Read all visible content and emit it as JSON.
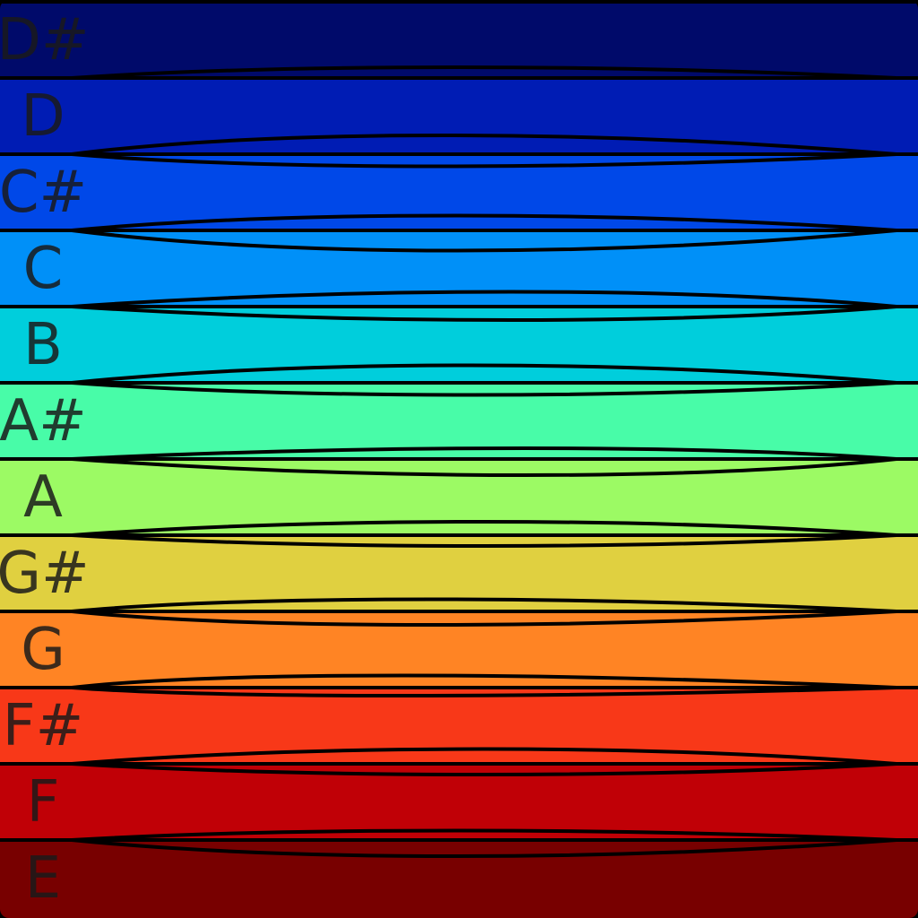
{
  "keys": [
    {
      "note": "D#",
      "color": "#000a6a",
      "lens_color": "#00128a"
    },
    {
      "note": "D",
      "color": "#001cb4",
      "lens_color": "#0012a0"
    },
    {
      "note": "C#",
      "color": "#0048e8",
      "lens_color": "#0028f0"
    },
    {
      "note": "C",
      "color": "#0090f8",
      "lens_color": "#0078d8"
    },
    {
      "note": "B",
      "color": "#00cedc",
      "lens_color": "#00c8a0"
    },
    {
      "note": "A#",
      "color": "#48fca8",
      "lens_color": "#28f458"
    },
    {
      "note": "A",
      "color": "#9cfa64",
      "lens_color": "#88cc38"
    },
    {
      "note": "G#",
      "color": "#e0d040",
      "lens_color": "#e07020"
    },
    {
      "note": "G",
      "color": "#ff8424",
      "lens_color": "#fa1e14"
    },
    {
      "note": "F#",
      "color": "#f83818",
      "lens_color": "#b80404"
    },
    {
      "note": "F",
      "color": "#c00006",
      "lens_color": "#820000"
    },
    {
      "note": "E",
      "color": "#780000",
      "lens_color": "#780000"
    }
  ],
  "outline_color": "#000000"
}
